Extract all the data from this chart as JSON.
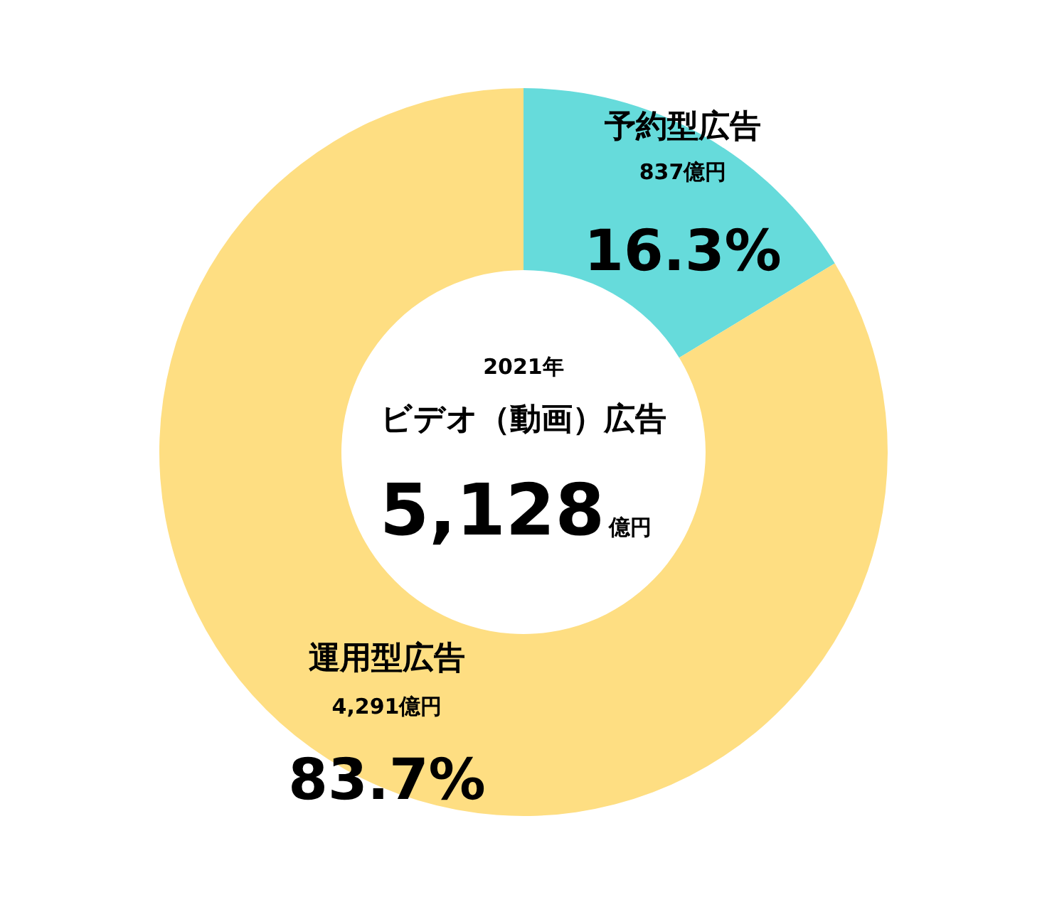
{
  "chart_data": {
    "type": "donut",
    "title": "ビデオ（動画）広告",
    "subtitle": "2021年",
    "categories": [
      "予約型広告",
      "運用型広告"
    ],
    "values": [
      837,
      4291
    ],
    "value_labels": [
      "837億円",
      "4,291億円"
    ],
    "colors": [
      "#66dbdb",
      "#fede82"
    ],
    "annotations": [
      "5,128",
      "億円",
      "16.3%",
      "83.7%"
    ]
  }
}
